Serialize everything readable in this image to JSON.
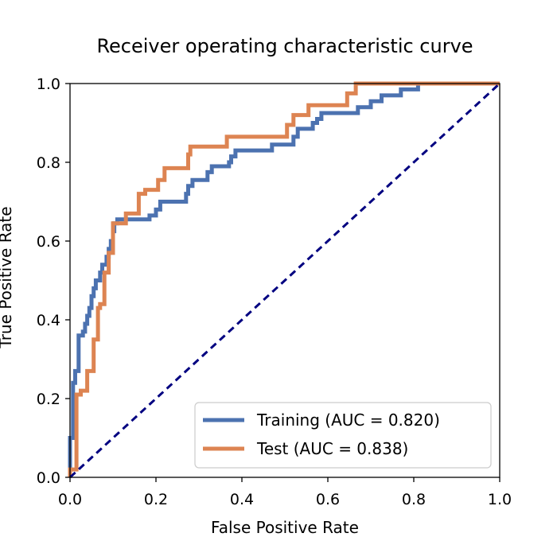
{
  "chart_data": {
    "type": "line",
    "title": "Receiver operating characteristic curve",
    "xlabel": "False Positive Rate",
    "ylabel": "True Positive Rate",
    "xlim": [
      0.0,
      1.0
    ],
    "ylim": [
      0.0,
      1.0
    ],
    "xticks": [
      "0.0",
      "0.2",
      "0.4",
      "0.6",
      "0.8",
      "1.0"
    ],
    "yticks": [
      "0.0",
      "0.2",
      "0.4",
      "0.6",
      "0.8",
      "1.0"
    ],
    "grid": false,
    "legend_position": "lower-right",
    "series": [
      {
        "name": "Training (AUC = 0.820)",
        "color": "#4c72b0",
        "points": [
          [
            0.0,
            0.0
          ],
          [
            0.0,
            0.1
          ],
          [
            0.007,
            0.1
          ],
          [
            0.007,
            0.24
          ],
          [
            0.012,
            0.24
          ],
          [
            0.012,
            0.27
          ],
          [
            0.02,
            0.27
          ],
          [
            0.02,
            0.36
          ],
          [
            0.03,
            0.36
          ],
          [
            0.03,
            0.37
          ],
          [
            0.035,
            0.37
          ],
          [
            0.035,
            0.39
          ],
          [
            0.04,
            0.39
          ],
          [
            0.04,
            0.41
          ],
          [
            0.045,
            0.41
          ],
          [
            0.045,
            0.43
          ],
          [
            0.05,
            0.43
          ],
          [
            0.05,
            0.46
          ],
          [
            0.055,
            0.46
          ],
          [
            0.055,
            0.48
          ],
          [
            0.06,
            0.48
          ],
          [
            0.06,
            0.5
          ],
          [
            0.07,
            0.5
          ],
          [
            0.07,
            0.52
          ],
          [
            0.075,
            0.52
          ],
          [
            0.075,
            0.54
          ],
          [
            0.085,
            0.54
          ],
          [
            0.085,
            0.56
          ],
          [
            0.09,
            0.56
          ],
          [
            0.09,
            0.58
          ],
          [
            0.095,
            0.58
          ],
          [
            0.095,
            0.6
          ],
          [
            0.1,
            0.6
          ],
          [
            0.1,
            0.625
          ],
          [
            0.103,
            0.625
          ],
          [
            0.103,
            0.645
          ],
          [
            0.11,
            0.645
          ],
          [
            0.11,
            0.655
          ],
          [
            0.185,
            0.655
          ],
          [
            0.185,
            0.665
          ],
          [
            0.2,
            0.665
          ],
          [
            0.2,
            0.68
          ],
          [
            0.21,
            0.68
          ],
          [
            0.21,
            0.7
          ],
          [
            0.27,
            0.7
          ],
          [
            0.27,
            0.72
          ],
          [
            0.275,
            0.72
          ],
          [
            0.275,
            0.74
          ],
          [
            0.285,
            0.74
          ],
          [
            0.285,
            0.755
          ],
          [
            0.32,
            0.755
          ],
          [
            0.32,
            0.775
          ],
          [
            0.33,
            0.775
          ],
          [
            0.33,
            0.79
          ],
          [
            0.37,
            0.79
          ],
          [
            0.37,
            0.8
          ],
          [
            0.375,
            0.8
          ],
          [
            0.375,
            0.815
          ],
          [
            0.385,
            0.815
          ],
          [
            0.385,
            0.83
          ],
          [
            0.47,
            0.83
          ],
          [
            0.47,
            0.845
          ],
          [
            0.52,
            0.845
          ],
          [
            0.52,
            0.865
          ],
          [
            0.53,
            0.865
          ],
          [
            0.53,
            0.885
          ],
          [
            0.565,
            0.885
          ],
          [
            0.565,
            0.9
          ],
          [
            0.575,
            0.9
          ],
          [
            0.575,
            0.91
          ],
          [
            0.585,
            0.91
          ],
          [
            0.585,
            0.925
          ],
          [
            0.67,
            0.925
          ],
          [
            0.67,
            0.94
          ],
          [
            0.7,
            0.94
          ],
          [
            0.7,
            0.955
          ],
          [
            0.725,
            0.955
          ],
          [
            0.725,
            0.97
          ],
          [
            0.77,
            0.97
          ],
          [
            0.77,
            0.985
          ],
          [
            0.81,
            0.985
          ],
          [
            0.81,
            1.0
          ],
          [
            1.0,
            1.0
          ]
        ]
      },
      {
        "name": "Test (AUC = 0.838)",
        "color": "#dd8452",
        "points": [
          [
            0.0,
            0.0
          ],
          [
            0.0,
            0.02
          ],
          [
            0.015,
            0.02
          ],
          [
            0.015,
            0.21
          ],
          [
            0.025,
            0.21
          ],
          [
            0.025,
            0.22
          ],
          [
            0.04,
            0.22
          ],
          [
            0.04,
            0.27
          ],
          [
            0.055,
            0.27
          ],
          [
            0.055,
            0.35
          ],
          [
            0.065,
            0.35
          ],
          [
            0.065,
            0.43
          ],
          [
            0.07,
            0.43
          ],
          [
            0.07,
            0.44
          ],
          [
            0.08,
            0.44
          ],
          [
            0.08,
            0.52
          ],
          [
            0.09,
            0.52
          ],
          [
            0.09,
            0.57
          ],
          [
            0.1,
            0.57
          ],
          [
            0.1,
            0.645
          ],
          [
            0.13,
            0.645
          ],
          [
            0.13,
            0.67
          ],
          [
            0.16,
            0.67
          ],
          [
            0.16,
            0.72
          ],
          [
            0.175,
            0.72
          ],
          [
            0.175,
            0.73
          ],
          [
            0.205,
            0.73
          ],
          [
            0.205,
            0.755
          ],
          [
            0.22,
            0.755
          ],
          [
            0.22,
            0.785
          ],
          [
            0.275,
            0.785
          ],
          [
            0.275,
            0.82
          ],
          [
            0.28,
            0.82
          ],
          [
            0.28,
            0.84
          ],
          [
            0.365,
            0.84
          ],
          [
            0.365,
            0.865
          ],
          [
            0.505,
            0.865
          ],
          [
            0.505,
            0.895
          ],
          [
            0.52,
            0.895
          ],
          [
            0.52,
            0.92
          ],
          [
            0.555,
            0.92
          ],
          [
            0.555,
            0.945
          ],
          [
            0.645,
            0.945
          ],
          [
            0.645,
            0.975
          ],
          [
            0.665,
            0.975
          ],
          [
            0.665,
            1.0
          ],
          [
            1.0,
            1.0
          ]
        ]
      }
    ],
    "reference_line": {
      "name": "chance",
      "color": "#000080",
      "points": [
        [
          0.0,
          0.0
        ],
        [
          1.0,
          1.0
        ]
      ]
    }
  }
}
